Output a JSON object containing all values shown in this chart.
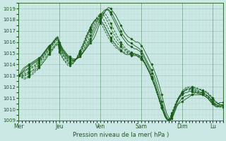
{
  "title": "Pression niveau de la mer( hPa )",
  "bg_color": "#cce8e4",
  "grid_color_major": "#a8ccc8",
  "grid_color_minor": "#b8d8d4",
  "line_color": "#1a5c1a",
  "ylim": [
    1009,
    1019.5
  ],
  "yticks": [
    1009,
    1010,
    1011,
    1012,
    1013,
    1014,
    1015,
    1016,
    1017,
    1018,
    1019
  ],
  "day_labels": [
    "Mer",
    "Jeu",
    "Ven",
    "Sam",
    "Dim",
    "Lu"
  ],
  "day_positions": [
    0,
    24,
    48,
    72,
    96,
    114
  ],
  "xlim": [
    0,
    120
  ],
  "num_points": 121,
  "curves": [
    [
      1013.0,
      1013.2,
      1013.5,
      1013.7,
      1013.8,
      1013.9,
      1014.0,
      1014.1,
      1014.2,
      1014.3,
      1014.4,
      1014.5,
      1014.6,
      1014.7,
      1014.9,
      1015.1,
      1015.3,
      1015.5,
      1015.7,
      1015.8,
      1015.9,
      1016.1,
      1016.3,
      1016.4,
      1016.0,
      1015.7,
      1015.4,
      1015.2,
      1015.0,
      1014.8,
      1014.7,
      1014.6,
      1014.5,
      1014.5,
      1014.5,
      1014.6,
      1014.7,
      1014.9,
      1015.1,
      1015.3,
      1015.5,
      1015.7,
      1015.9,
      1016.1,
      1016.3,
      1016.6,
      1017.0,
      1017.4,
      1017.8,
      1018.2,
      1018.5,
      1018.8,
      1019.0,
      1019.1,
      1019.0,
      1018.8,
      1018.6,
      1018.4,
      1018.1,
      1017.8,
      1017.5,
      1017.2,
      1016.9,
      1016.7,
      1016.5,
      1016.4,
      1016.3,
      1016.2,
      1016.1,
      1016.0,
      1016.0,
      1015.9,
      1015.7,
      1015.5,
      1015.2,
      1014.9,
      1014.6,
      1014.3,
      1014.0,
      1013.7,
      1013.3,
      1012.9,
      1012.4,
      1011.9,
      1011.3,
      1010.7,
      1010.1,
      1009.6,
      1009.3,
      1009.1,
      1009.2,
      1009.5,
      1009.9,
      1010.3,
      1010.5,
      1010.6,
      1010.7,
      1010.8,
      1010.9,
      1011.0,
      1011.1,
      1011.2,
      1011.3,
      1011.4,
      1011.5,
      1011.5,
      1011.5,
      1011.5,
      1011.5,
      1011.4,
      1011.3,
      1011.2,
      1011.0,
      1010.8,
      1010.6,
      1010.5,
      1010.4,
      1010.5,
      1010.6,
      1010.6,
      1010.6
    ],
    [
      1013.0,
      1013.1,
      1013.3,
      1013.5,
      1013.7,
      1013.8,
      1013.9,
      1014.0,
      1014.1,
      1014.2,
      1014.3,
      1014.4,
      1014.5,
      1014.7,
      1014.9,
      1015.1,
      1015.3,
      1015.5,
      1015.7,
      1015.8,
      1016.0,
      1016.2,
      1016.4,
      1016.5,
      1015.9,
      1015.6,
      1015.3,
      1015.1,
      1014.9,
      1014.7,
      1014.6,
      1014.5,
      1014.4,
      1014.4,
      1014.5,
      1014.6,
      1014.7,
      1014.9,
      1015.1,
      1015.3,
      1015.5,
      1015.8,
      1016.1,
      1016.4,
      1016.7,
      1017.1,
      1017.4,
      1017.8,
      1018.1,
      1018.4,
      1018.6,
      1018.8,
      1018.9,
      1018.9,
      1018.7,
      1018.5,
      1018.2,
      1017.9,
      1017.6,
      1017.3,
      1017.0,
      1016.7,
      1016.5,
      1016.3,
      1016.1,
      1016.0,
      1015.9,
      1015.8,
      1015.7,
      1015.6,
      1015.5,
      1015.4,
      1015.2,
      1015.0,
      1014.7,
      1014.4,
      1014.1,
      1013.8,
      1013.5,
      1013.2,
      1012.8,
      1012.3,
      1011.8,
      1011.3,
      1010.7,
      1010.2,
      1009.7,
      1009.3,
      1009.1,
      1009.0,
      1009.2,
      1009.6,
      1010.0,
      1010.4,
      1010.6,
      1010.8,
      1011.0,
      1011.1,
      1011.2,
      1011.2,
      1011.3,
      1011.3,
      1011.3,
      1011.3,
      1011.3,
      1011.3,
      1011.3,
      1011.3,
      1011.3,
      1011.2,
      1011.1,
      1011.0,
      1010.8,
      1010.6,
      1010.5,
      1010.4,
      1010.3,
      1010.3,
      1010.4,
      1010.4,
      1010.4
    ],
    [
      1013.0,
      1013.1,
      1013.2,
      1013.4,
      1013.5,
      1013.6,
      1013.7,
      1013.8,
      1014.0,
      1014.1,
      1014.2,
      1014.3,
      1014.4,
      1014.6,
      1014.8,
      1015.0,
      1015.2,
      1015.4,
      1015.6,
      1015.7,
      1015.9,
      1016.1,
      1016.3,
      1016.4,
      1015.8,
      1015.5,
      1015.2,
      1015.0,
      1014.8,
      1014.6,
      1014.5,
      1014.4,
      1014.4,
      1014.4,
      1014.5,
      1014.6,
      1014.7,
      1014.9,
      1015.1,
      1015.4,
      1015.7,
      1016.0,
      1016.3,
      1016.7,
      1017.1,
      1017.4,
      1017.8,
      1018.1,
      1018.4,
      1018.6,
      1018.8,
      1018.9,
      1018.9,
      1018.8,
      1018.5,
      1018.2,
      1017.9,
      1017.6,
      1017.3,
      1017.0,
      1016.7,
      1016.4,
      1016.2,
      1016.0,
      1015.8,
      1015.7,
      1015.6,
      1015.5,
      1015.4,
      1015.4,
      1015.3,
      1015.2,
      1015.0,
      1014.8,
      1014.5,
      1014.2,
      1013.9,
      1013.6,
      1013.2,
      1012.8,
      1012.4,
      1011.9,
      1011.4,
      1010.9,
      1010.4,
      1009.9,
      1009.5,
      1009.2,
      1009.0,
      1009.1,
      1009.4,
      1009.8,
      1010.2,
      1010.6,
      1010.9,
      1011.1,
      1011.3,
      1011.4,
      1011.5,
      1011.5,
      1011.6,
      1011.6,
      1011.6,
      1011.5,
      1011.5,
      1011.4,
      1011.4,
      1011.3,
      1011.3,
      1011.2,
      1011.1,
      1011.0,
      1010.8,
      1010.7,
      1010.5,
      1010.3,
      1010.2,
      1010.2,
      1010.3,
      1010.3,
      1010.3
    ],
    [
      1013.0,
      1013.0,
      1013.1,
      1013.2,
      1013.4,
      1013.5,
      1013.6,
      1013.7,
      1013.8,
      1013.9,
      1014.0,
      1014.2,
      1014.3,
      1014.5,
      1014.7,
      1014.9,
      1015.1,
      1015.3,
      1015.5,
      1015.7,
      1015.9,
      1016.1,
      1016.3,
      1016.4,
      1015.7,
      1015.4,
      1015.1,
      1014.9,
      1014.7,
      1014.5,
      1014.4,
      1014.3,
      1014.3,
      1014.4,
      1014.5,
      1014.6,
      1014.8,
      1015.0,
      1015.3,
      1015.6,
      1015.9,
      1016.2,
      1016.6,
      1017.0,
      1017.4,
      1017.7,
      1018.0,
      1018.3,
      1018.5,
      1018.6,
      1018.6,
      1018.5,
      1018.3,
      1018.0,
      1017.7,
      1017.4,
      1017.1,
      1016.8,
      1016.5,
      1016.3,
      1016.0,
      1015.8,
      1015.6,
      1015.4,
      1015.3,
      1015.2,
      1015.1,
      1015.0,
      1015.0,
      1014.9,
      1014.9,
      1014.8,
      1014.7,
      1014.5,
      1014.2,
      1013.9,
      1013.6,
      1013.3,
      1012.9,
      1012.5,
      1012.1,
      1011.6,
      1011.1,
      1010.6,
      1010.1,
      1009.7,
      1009.3,
      1009.1,
      1009.1,
      1009.3,
      1009.7,
      1010.1,
      1010.5,
      1010.8,
      1011.1,
      1011.3,
      1011.5,
      1011.6,
      1011.7,
      1011.7,
      1011.7,
      1011.7,
      1011.6,
      1011.6,
      1011.5,
      1011.5,
      1011.4,
      1011.4,
      1011.3,
      1011.3,
      1011.2,
      1011.1,
      1010.9,
      1010.8,
      1010.6,
      1010.4,
      1010.3,
      1010.2,
      1010.2,
      1010.2,
      1010.2
    ],
    [
      1013.0,
      1013.0,
      1013.0,
      1013.1,
      1013.2,
      1013.3,
      1013.4,
      1013.6,
      1013.7,
      1013.8,
      1013.9,
      1014.1,
      1014.2,
      1014.4,
      1014.6,
      1014.8,
      1015.0,
      1015.2,
      1015.4,
      1015.6,
      1015.8,
      1016.0,
      1016.2,
      1016.3,
      1015.6,
      1015.3,
      1015.0,
      1014.8,
      1014.6,
      1014.4,
      1014.3,
      1014.3,
      1014.3,
      1014.4,
      1014.5,
      1014.7,
      1014.9,
      1015.2,
      1015.5,
      1015.8,
      1016.2,
      1016.5,
      1016.9,
      1017.3,
      1017.6,
      1017.9,
      1018.2,
      1018.4,
      1018.5,
      1018.5,
      1018.4,
      1018.2,
      1017.9,
      1017.6,
      1017.3,
      1017.0,
      1016.7,
      1016.5,
      1016.2,
      1016.0,
      1015.8,
      1015.6,
      1015.4,
      1015.3,
      1015.2,
      1015.1,
      1015.0,
      1015.0,
      1014.9,
      1014.9,
      1014.8,
      1014.8,
      1014.6,
      1014.4,
      1014.2,
      1013.9,
      1013.6,
      1013.2,
      1012.9,
      1012.5,
      1012.1,
      1011.6,
      1011.1,
      1010.6,
      1010.1,
      1009.7,
      1009.3,
      1009.1,
      1009.0,
      1009.2,
      1009.6,
      1010.0,
      1010.4,
      1010.8,
      1011.1,
      1011.3,
      1011.5,
      1011.6,
      1011.7,
      1011.8,
      1011.8,
      1011.8,
      1011.7,
      1011.7,
      1011.6,
      1011.6,
      1011.5,
      1011.5,
      1011.4,
      1011.4,
      1011.3,
      1011.2,
      1011.0,
      1010.9,
      1010.7,
      1010.5,
      1010.4,
      1010.3,
      1010.2,
      1010.2,
      1010.2
    ],
    [
      1013.0,
      1013.0,
      1013.0,
      1013.0,
      1013.1,
      1013.2,
      1013.3,
      1013.4,
      1013.5,
      1013.6,
      1013.8,
      1013.9,
      1014.1,
      1014.3,
      1014.5,
      1014.7,
      1014.9,
      1015.1,
      1015.3,
      1015.5,
      1015.7,
      1015.9,
      1016.1,
      1016.2,
      1015.5,
      1015.2,
      1014.9,
      1014.7,
      1014.5,
      1014.3,
      1014.2,
      1014.2,
      1014.3,
      1014.4,
      1014.5,
      1014.8,
      1015.0,
      1015.3,
      1015.7,
      1016.0,
      1016.4,
      1016.8,
      1017.1,
      1017.5,
      1017.8,
      1018.0,
      1018.2,
      1018.3,
      1018.3,
      1018.2,
      1018.0,
      1017.7,
      1017.4,
      1017.1,
      1016.8,
      1016.6,
      1016.3,
      1016.1,
      1015.9,
      1015.7,
      1015.6,
      1015.4,
      1015.3,
      1015.2,
      1015.1,
      1015.0,
      1015.0,
      1015.0,
      1014.9,
      1014.9,
      1014.8,
      1014.7,
      1014.6,
      1014.4,
      1014.2,
      1013.9,
      1013.6,
      1013.3,
      1012.9,
      1012.5,
      1012.1,
      1011.6,
      1011.1,
      1010.7,
      1010.2,
      1009.8,
      1009.4,
      1009.1,
      1009.0,
      1009.1,
      1009.5,
      1009.9,
      1010.3,
      1010.7,
      1011.0,
      1011.2,
      1011.4,
      1011.6,
      1011.7,
      1011.8,
      1011.8,
      1011.8,
      1011.8,
      1011.7,
      1011.7,
      1011.6,
      1011.6,
      1011.5,
      1011.5,
      1011.4,
      1011.3,
      1011.2,
      1011.1,
      1010.9,
      1010.7,
      1010.6,
      1010.4,
      1010.3,
      1010.3,
      1010.3,
      1010.3
    ],
    [
      1013.0,
      1013.0,
      1012.9,
      1012.9,
      1013.0,
      1013.1,
      1013.2,
      1013.3,
      1013.4,
      1013.5,
      1013.6,
      1013.8,
      1013.9,
      1014.1,
      1014.3,
      1014.5,
      1014.7,
      1014.9,
      1015.1,
      1015.3,
      1015.5,
      1015.7,
      1015.9,
      1016.0,
      1015.4,
      1015.1,
      1014.8,
      1014.6,
      1014.4,
      1014.2,
      1014.1,
      1014.1,
      1014.2,
      1014.3,
      1014.5,
      1014.8,
      1015.1,
      1015.4,
      1015.7,
      1016.1,
      1016.5,
      1016.8,
      1017.2,
      1017.5,
      1017.8,
      1018.0,
      1018.1,
      1018.1,
      1018.0,
      1017.8,
      1017.6,
      1017.3,
      1017.0,
      1016.7,
      1016.4,
      1016.2,
      1016.0,
      1015.8,
      1015.6,
      1015.5,
      1015.3,
      1015.2,
      1015.1,
      1015.1,
      1015.0,
      1015.0,
      1014.9,
      1014.9,
      1014.9,
      1014.9,
      1014.8,
      1014.7,
      1014.6,
      1014.4,
      1014.2,
      1013.9,
      1013.6,
      1013.3,
      1012.9,
      1012.5,
      1012.1,
      1011.6,
      1011.2,
      1010.7,
      1010.2,
      1009.8,
      1009.4,
      1009.1,
      1009.0,
      1009.1,
      1009.4,
      1009.8,
      1010.2,
      1010.6,
      1011.0,
      1011.2,
      1011.4,
      1011.6,
      1011.7,
      1011.8,
      1011.8,
      1011.9,
      1011.9,
      1011.8,
      1011.8,
      1011.7,
      1011.7,
      1011.7,
      1011.6,
      1011.5,
      1011.5,
      1011.4,
      1011.2,
      1011.1,
      1010.9,
      1010.7,
      1010.6,
      1010.5,
      1010.4,
      1010.4,
      1010.4
    ],
    [
      1013.0,
      1012.9,
      1012.9,
      1012.8,
      1012.8,
      1012.9,
      1013.0,
      1013.1,
      1013.2,
      1013.4,
      1013.5,
      1013.6,
      1013.8,
      1013.9,
      1014.1,
      1014.3,
      1014.5,
      1014.8,
      1015.0,
      1015.2,
      1015.4,
      1015.6,
      1015.8,
      1015.9,
      1015.2,
      1014.9,
      1014.6,
      1014.4,
      1014.2,
      1014.1,
      1014.0,
      1014.0,
      1014.1,
      1014.3,
      1014.5,
      1014.8,
      1015.1,
      1015.5,
      1015.8,
      1016.2,
      1016.6,
      1016.9,
      1017.3,
      1017.6,
      1017.8,
      1018.0,
      1018.1,
      1018.0,
      1017.9,
      1017.7,
      1017.5,
      1017.2,
      1016.9,
      1016.6,
      1016.3,
      1016.1,
      1015.9,
      1015.7,
      1015.5,
      1015.4,
      1015.2,
      1015.1,
      1015.0,
      1014.9,
      1014.9,
      1014.9,
      1014.9,
      1014.8,
      1014.8,
      1014.8,
      1014.7,
      1014.6,
      1014.5,
      1014.3,
      1014.1,
      1013.8,
      1013.5,
      1013.2,
      1012.8,
      1012.4,
      1012.0,
      1011.5,
      1011.1,
      1010.6,
      1010.2,
      1009.8,
      1009.4,
      1009.1,
      1009.0,
      1009.2,
      1009.5,
      1009.9,
      1010.3,
      1010.7,
      1011.0,
      1011.3,
      1011.5,
      1011.7,
      1011.8,
      1011.9,
      1011.9,
      1011.9,
      1011.9,
      1011.9,
      1011.9,
      1011.8,
      1011.8,
      1011.7,
      1011.7,
      1011.6,
      1011.5,
      1011.4,
      1011.3,
      1011.1,
      1011.0,
      1010.8,
      1010.6,
      1010.5,
      1010.4,
      1010.4,
      1010.4
    ],
    [
      1013.0,
      1012.9,
      1012.8,
      1012.7,
      1012.7,
      1012.8,
      1012.9,
      1013.0,
      1013.1,
      1013.2,
      1013.4,
      1013.5,
      1013.7,
      1013.9,
      1014.1,
      1014.3,
      1014.5,
      1014.7,
      1014.9,
      1015.1,
      1015.3,
      1015.5,
      1015.7,
      1015.8,
      1015.1,
      1014.8,
      1014.5,
      1014.3,
      1014.1,
      1013.9,
      1013.9,
      1014.0,
      1014.1,
      1014.3,
      1014.6,
      1014.9,
      1015.2,
      1015.6,
      1015.9,
      1016.3,
      1016.7,
      1017.0,
      1017.3,
      1017.6,
      1017.8,
      1017.9,
      1017.9,
      1017.8,
      1017.7,
      1017.5,
      1017.2,
      1016.9,
      1016.6,
      1016.3,
      1016.1,
      1015.9,
      1015.7,
      1015.5,
      1015.4,
      1015.3,
      1015.2,
      1015.1,
      1015.0,
      1014.9,
      1014.9,
      1014.9,
      1014.8,
      1014.8,
      1014.8,
      1014.8,
      1014.7,
      1014.6,
      1014.5,
      1014.3,
      1014.1,
      1013.8,
      1013.5,
      1013.2,
      1012.8,
      1012.4,
      1012.0,
      1011.5,
      1011.1,
      1010.6,
      1010.2,
      1009.8,
      1009.4,
      1009.1,
      1009.0,
      1009.1,
      1009.5,
      1009.9,
      1010.3,
      1010.7,
      1011.0,
      1011.3,
      1011.6,
      1011.8,
      1011.9,
      1012.0,
      1012.0,
      1012.0,
      1012.0,
      1012.0,
      1011.9,
      1011.9,
      1011.8,
      1011.8,
      1011.7,
      1011.6,
      1011.6,
      1011.5,
      1011.3,
      1011.2,
      1011.0,
      1010.8,
      1010.7,
      1010.5,
      1010.5,
      1010.4,
      1010.4
    ]
  ]
}
